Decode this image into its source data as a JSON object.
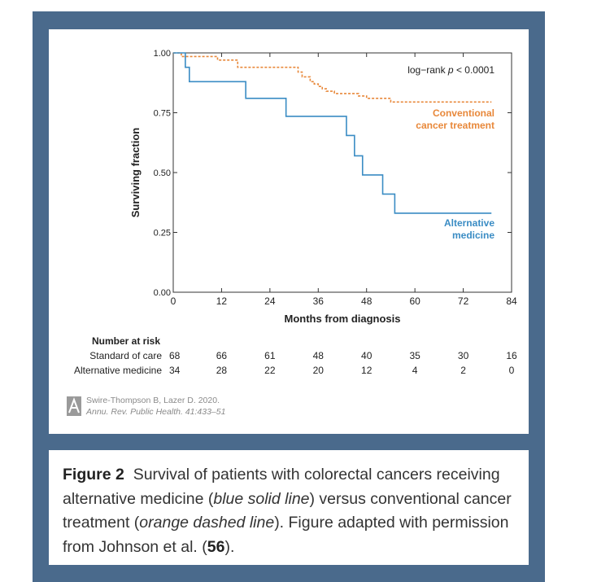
{
  "figure": {
    "credit_line1": "Swire-Thompson B, Lazer D. 2020.",
    "credit_line2_journal": "Annu. Rev. Public Health.",
    "credit_line2_ref": "41:433–51",
    "caption": {
      "label": "Figure 2",
      "part1": "Survival of patients with colorectal cancers receiving alternative medicine (",
      "italic1": "blue solid line",
      "part2": ") versus conventional cancer treatment (",
      "italic2": "orange dashed line",
      "part3": "). Figure adapted with permission from Johnson et al. (",
      "ref": "56",
      "part4": ")."
    }
  },
  "colors": {
    "frame": "#4a6a8c",
    "alternative": "#3a8cc4",
    "conventional": "#e8883a",
    "axis": "#333333"
  },
  "chart_data": {
    "type": "line",
    "xlabel": "Months from diagnosis",
    "ylabel": "Surviving fraction",
    "xlim": [
      0,
      84
    ],
    "ylim": [
      0,
      1
    ],
    "xticks": [
      "0",
      "12",
      "24",
      "36",
      "48",
      "60",
      "72",
      "84"
    ],
    "yticks": [
      "0.00",
      "0.25",
      "0.50",
      "0.75",
      "1.00"
    ],
    "annotation": {
      "prefix": "log−rank ",
      "italic": "p",
      "suffix": " < 0.0001"
    },
    "step": true,
    "series": [
      {
        "name": "Conventional cancer treatment",
        "label_lines": [
          "Conventional",
          "cancer treatment"
        ],
        "style": "dashed",
        "x": [
          0,
          2,
          11,
          16,
          28,
          31,
          32,
          34,
          35,
          36,
          37,
          38,
          40,
          46,
          48,
          54,
          79
        ],
        "y": [
          1.0,
          0.985,
          0.97,
          0.94,
          0.94,
          0.92,
          0.9,
          0.88,
          0.87,
          0.86,
          0.85,
          0.84,
          0.83,
          0.82,
          0.81,
          0.795,
          0.795
        ]
      },
      {
        "name": "Alternative medicine",
        "label_lines": [
          "Alternative",
          "medicine"
        ],
        "style": "solid",
        "x": [
          0,
          3,
          4,
          18,
          28,
          43,
          45,
          47,
          52,
          55,
          79
        ],
        "y": [
          1.0,
          0.94,
          0.88,
          0.81,
          0.735,
          0.655,
          0.57,
          0.49,
          0.41,
          0.33,
          0.33
        ]
      }
    ],
    "risk_table": {
      "title": "Number at risk",
      "rows": [
        {
          "label": "Standard of care",
          "values": [
            "68",
            "66",
            "61",
            "48",
            "40",
            "35",
            "30",
            "16"
          ]
        },
        {
          "label": "Alternative medicine",
          "values": [
            "34",
            "28",
            "22",
            "20",
            "12",
            "4",
            "2",
            "0"
          ]
        }
      ]
    }
  }
}
